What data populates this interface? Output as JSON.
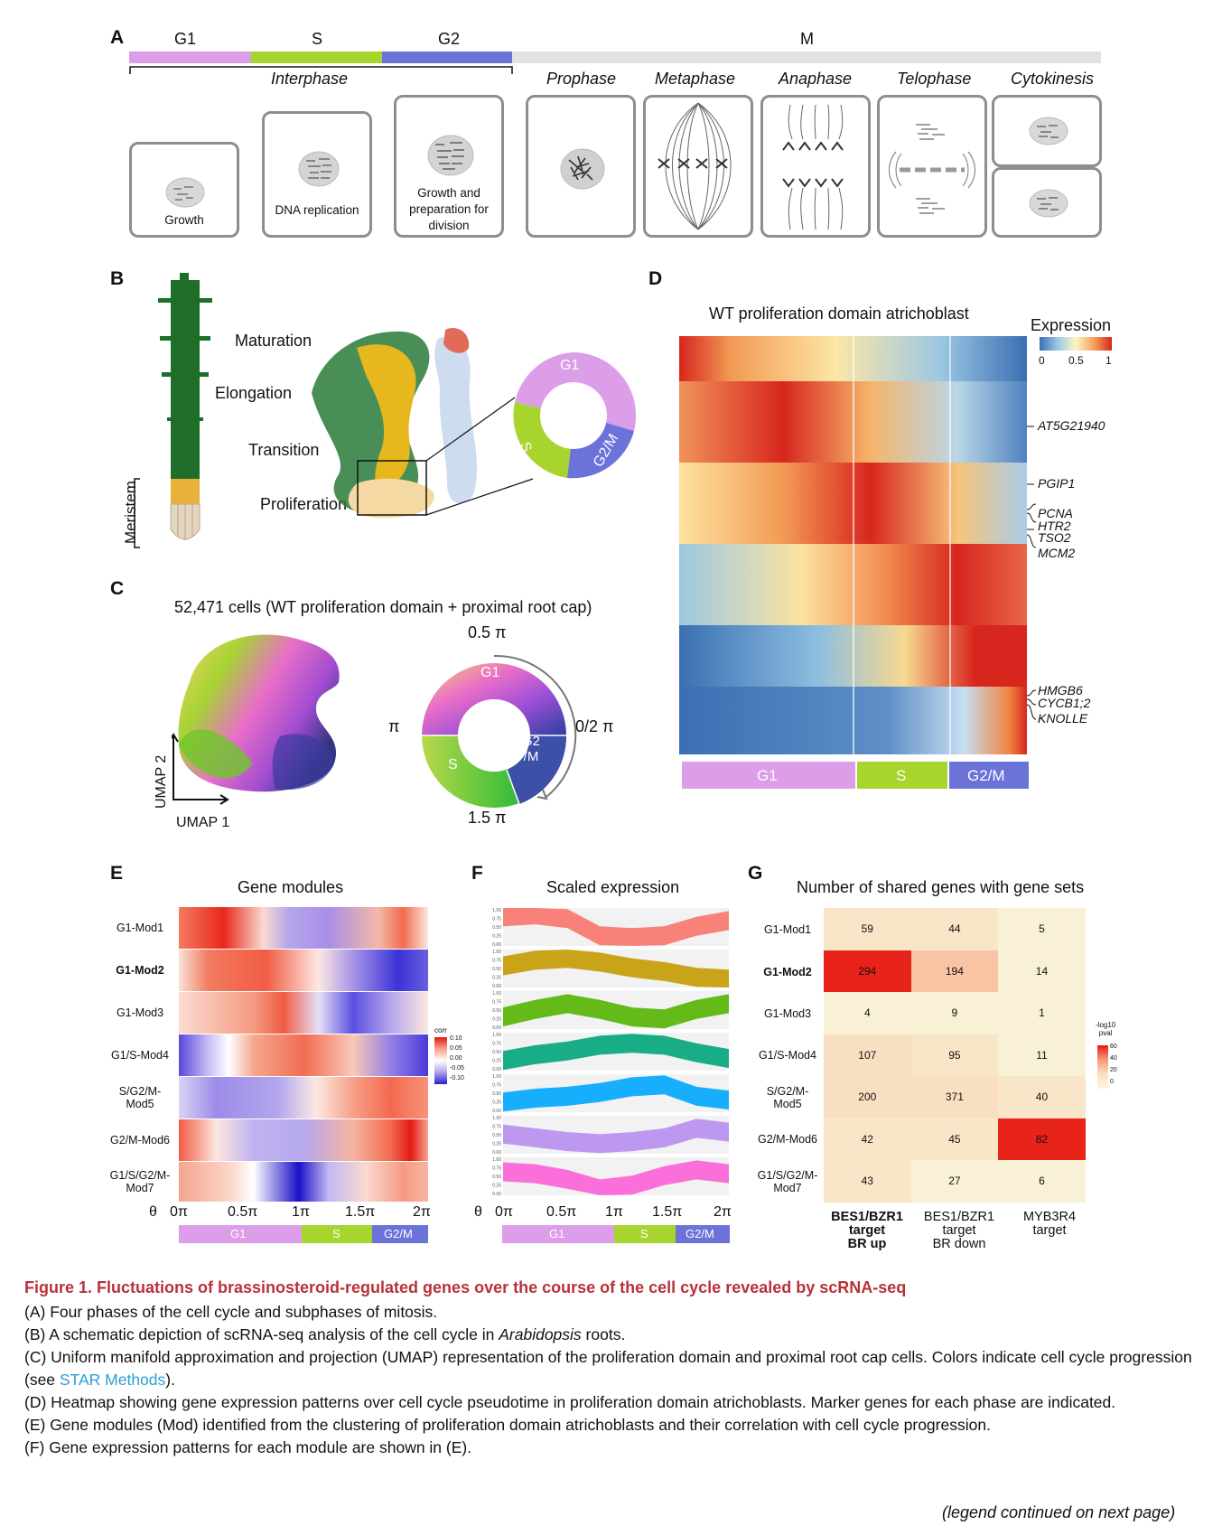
{
  "panelA": {
    "label": "A",
    "phases": [
      "G1",
      "S",
      "G2",
      "M"
    ],
    "interphase": "Interphase",
    "subphases": [
      "Prophase",
      "Metaphase",
      "Anaphase",
      "Telophase",
      "Cytokinesis"
    ],
    "cells": [
      "Growth",
      "DNA replication",
      "Growth and preparation for division"
    ],
    "colors": {
      "G1": "#dc9ee8",
      "S": "#a8d42e",
      "G2": "#6b72d8",
      "M": "#e2e2e2"
    }
  },
  "panelB": {
    "label": "B",
    "zones": [
      "Maturation",
      "Elongation",
      "Transition",
      "Proliferation"
    ],
    "meristem": "Meristem",
    "ring": [
      "G1",
      "S",
      "G2/M"
    ]
  },
  "panelC": {
    "label": "C",
    "title": "52,471 cells (WT proliferation domain + proximal root cap)",
    "axis_x": "UMAP 1",
    "axis_y": "UMAP 2",
    "ring_top": "0.5 π",
    "ring_left": "π",
    "ring_right": "0/2 π",
    "ring_bottom": "1.5 π",
    "ring_labels": [
      "G1",
      "S",
      "G2\n/M"
    ]
  },
  "panelD": {
    "label": "D",
    "title": "WT proliferation domain atrichoblast",
    "legend_title": "Expression",
    "legend_ticks": [
      "0",
      "0.5",
      "1"
    ],
    "genes": [
      "AT5G21940",
      "PGIP1",
      "PCNA",
      "HTR2",
      "TSO2",
      "MCM2",
      "HMGB6",
      "CYCB1;2",
      "KNOLLE"
    ],
    "bar": [
      "G1",
      "S",
      "G2/M"
    ]
  },
  "panelE": {
    "label": "E",
    "title": "Gene modules",
    "rows": [
      "G1-Mod1",
      "G1-Mod2",
      "G1-Mod3",
      "G1/S-Mod4",
      "S/G2/M-\nMod5",
      "G2/M-Mod6",
      "G1/S/G2/M-\nMod7"
    ],
    "legend_title": "corr",
    "legend_ticks": [
      "0.10",
      "0.05",
      "0.00",
      "-0.05",
      "-0.10"
    ],
    "xaxis_symbol": "θ",
    "xticks": [
      "0π",
      "0.5π",
      "1π",
      "1.5π",
      "2π"
    ],
    "bar": [
      "G1",
      "S",
      "G2/M"
    ]
  },
  "panelF": {
    "label": "F",
    "title": "Scaled expression",
    "yticks": [
      "1.00",
      "0.75",
      "0.50",
      "0.25",
      "0.00"
    ],
    "xaxis_symbol": "θ",
    "xticks": [
      "0π",
      "0.5π",
      "1π",
      "1.5π",
      "2π"
    ],
    "bar": [
      "G1",
      "S",
      "G2/M"
    ],
    "colors": [
      "#f8766d",
      "#c49a00",
      "#53b400",
      "#00a57a",
      "#00a6ff",
      "#b68ef0",
      "#fb61d7"
    ]
  },
  "panelG": {
    "label": "G",
    "title": "Number of shared genes with gene sets",
    "rows": [
      "G1-Mod1",
      "G1-Mod2",
      "G1-Mod3",
      "G1/S-Mod4",
      "S/G2/M-\nMod5",
      "G2/M-Mod6",
      "G1/S/G2/M-\nMod7"
    ],
    "cols": [
      "BES1/BZR1\ntarget\nBR up",
      "BES1/BZR1\ntarget\nBR down",
      "MYB3R4\ntarget"
    ],
    "values": [
      [
        59,
        44,
        5
      ],
      [
        294,
        194,
        14
      ],
      [
        4,
        9,
        1
      ],
      [
        107,
        95,
        11
      ],
      [
        200,
        371,
        40
      ],
      [
        42,
        45,
        82
      ],
      [
        43,
        27,
        6
      ]
    ],
    "legend_title": "-log10\npval",
    "legend_ticks": [
      "60",
      "40",
      "20",
      "0"
    ]
  },
  "caption": {
    "title": "Figure 1.  Fluctuations of brassinosteroid-regulated genes over the course of the cell cycle revealed by scRNA-seq",
    "a": "(A) Four phases of the cell cycle and subphases of mitosis.",
    "b_pre": "(B) A schematic depiction of scRNA-seq analysis of the cell cycle in ",
    "b_it": "Arabidopsis",
    "b_post": " roots.",
    "c_pre": "(C) Uniform manifold approximation and projection (UMAP) representation of the proliferation domain and proximal root cap cells. Colors indicate cell cycle progression (see ",
    "c_link": "STAR Methods",
    "c_post": ").",
    "d": "(D) Heatmap showing gene expression patterns over cell cycle pseudotime in proliferation domain atrichoblasts. Marker genes for each phase are indicated.",
    "e": "(E) Gene modules (Mod) identified from the clustering of proliferation domain atrichoblasts and their correlation with cell cycle progression.",
    "f": "(F) Gene expression patterns for each module are shown in (E).",
    "continued": "(legend continued on next page)"
  }
}
